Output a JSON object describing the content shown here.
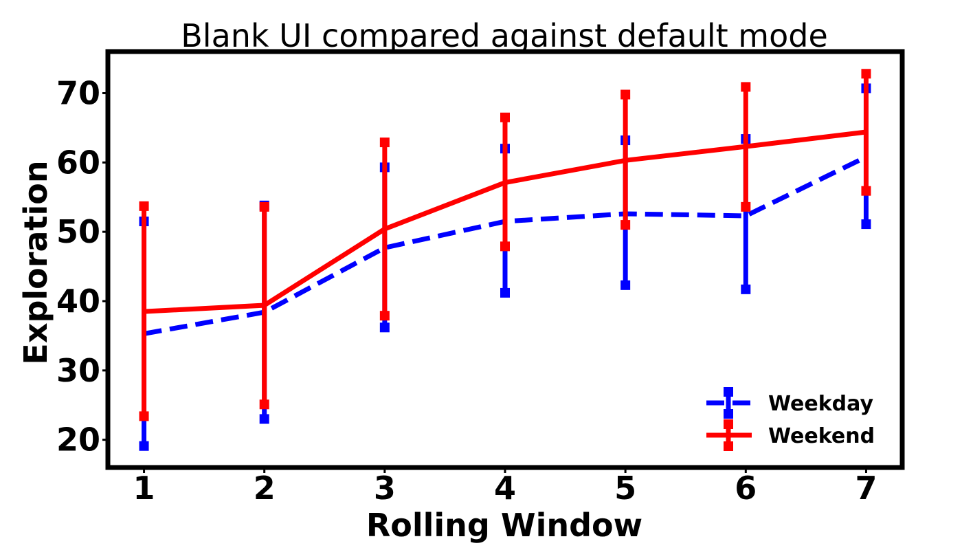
{
  "chart_data": {
    "type": "line",
    "title": "Blank UI compared against default mode",
    "xlabel": "Rolling Window",
    "ylabel": "Exploration",
    "x": [
      1,
      2,
      3,
      4,
      5,
      6,
      7
    ],
    "xticks": [
      "1",
      "2",
      "3",
      "4",
      "5",
      "6",
      "7"
    ],
    "yticks": [
      "20",
      "30",
      "40",
      "50",
      "60",
      "70"
    ],
    "ylim": [
      16,
      76
    ],
    "xlim": [
      0.7,
      7.3
    ],
    "grid": false,
    "legend_position": "bottom-right",
    "series": [
      {
        "name": "Weekday",
        "color": "#0000ff",
        "line_style": "dashed",
        "values": [
          35.3,
          38.4,
          47.7,
          51.5,
          52.6,
          52.3,
          60.8
        ],
        "error_low": [
          19.1,
          23.0,
          36.2,
          41.2,
          42.3,
          41.7,
          51.1
        ],
        "error_high": [
          51.5,
          53.8,
          59.3,
          62.0,
          63.2,
          63.4,
          70.7
        ]
      },
      {
        "name": "Weekend",
        "color": "#ff0000",
        "line_style": "solid",
        "values": [
          38.5,
          39.4,
          50.4,
          57.1,
          60.3,
          62.3,
          64.4
        ],
        "error_low": [
          23.4,
          25.1,
          37.9,
          47.9,
          51.0,
          53.6,
          55.9
        ],
        "error_high": [
          53.7,
          53.6,
          62.9,
          66.5,
          69.8,
          70.9,
          72.8
        ]
      }
    ]
  }
}
